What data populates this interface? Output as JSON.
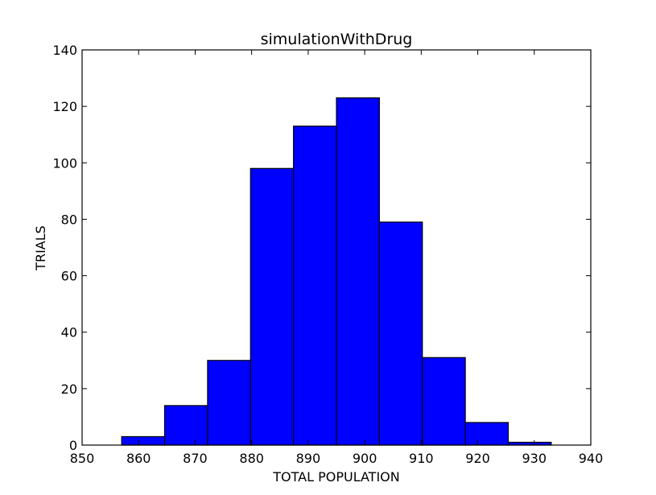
{
  "chart_data": {
    "type": "bar",
    "subtype": "histogram",
    "title": "simulationWithDrug",
    "xlabel": "TOTAL POPULATION",
    "ylabel": "TRIALS",
    "xlim": [
      850,
      940
    ],
    "ylim": [
      0,
      140
    ],
    "xticks": [
      850,
      860,
      870,
      880,
      890,
      900,
      910,
      920,
      930,
      940
    ],
    "yticks": [
      0,
      20,
      40,
      60,
      80,
      100,
      120,
      140
    ],
    "bin_edges": [
      857.0,
      864.6,
      872.2,
      879.8,
      887.4,
      895.0,
      902.6,
      910.2,
      917.8,
      925.4,
      933.0
    ],
    "values": [
      3,
      14,
      30,
      98,
      113,
      123,
      79,
      31,
      8,
      1
    ],
    "bar_color": "#0000ff",
    "edge_color": "#000000",
    "grid": false
  }
}
